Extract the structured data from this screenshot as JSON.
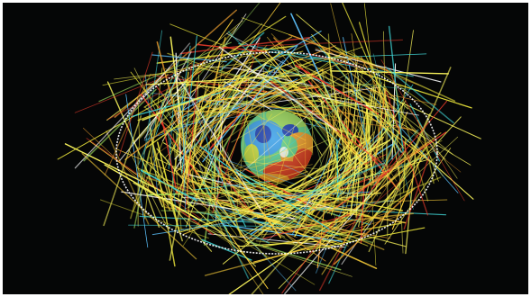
{
  "image": {
    "subject": "orbit-trajectory-visualization",
    "background_color": "#050606",
    "ellipse_color": "#ffffff",
    "stroke_palette": [
      "#f7f25a",
      "#e8e23a",
      "#ffd23a",
      "#f0a030",
      "#e63a2a",
      "#3fd0d0",
      "#58b8f0",
      "#9ad85a",
      "#ffffff"
    ],
    "globe_palette": [
      "#1b3fb0",
      "#3aa0e8",
      "#5fd08a",
      "#c8e040",
      "#f2a02a",
      "#e0401f"
    ]
  }
}
